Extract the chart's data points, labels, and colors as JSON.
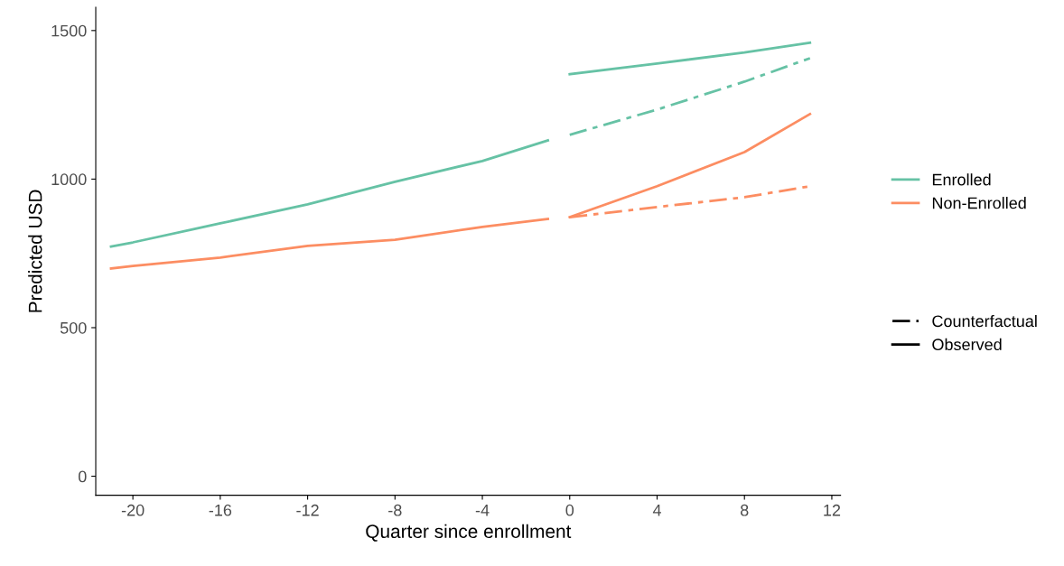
{
  "chart_data": {
    "type": "line",
    "xlabel": "Quarter since enrollment",
    "ylabel": "Predicted USD",
    "xlim": [
      -21.7,
      12.4
    ],
    "xticks": [
      -20,
      -16,
      -12,
      -8,
      -4,
      0,
      4,
      8,
      12
    ],
    "ylim": [
      -64,
      1578
    ],
    "yticks": [
      0,
      500,
      1000,
      1500
    ],
    "grid": false,
    "legend": "right",
    "marker": "none",
    "series": [
      {
        "name": "Enrolled",
        "color": "#66c2a5",
        "line_style": "solid",
        "x": [
          -21,
          -20,
          -16,
          -12,
          -8,
          -4,
          -1
        ],
        "values": [
          773,
          787,
          851,
          915,
          991,
          1061,
          1130
        ]
      },
      {
        "color": "#66c2a5",
        "line_style": "solid",
        "x": [
          0,
          4,
          8,
          11
        ],
        "values": [
          1353,
          1389,
          1426,
          1459
        ]
      },
      {
        "color": "#66c2a5",
        "line_style": "dashed",
        "x": [
          0,
          4,
          8,
          11
        ],
        "values": [
          1149,
          1234,
          1328,
          1407
        ]
      },
      {
        "name": "Non-Enrolled",
        "color": "#fc8d62",
        "line_style": "solid",
        "x": [
          -21,
          -20,
          -16,
          -12,
          -8,
          -4,
          -1
        ],
        "values": [
          699,
          708,
          736,
          775,
          796,
          839,
          866
        ]
      },
      {
        "color": "#fc8d62",
        "line_style": "solid",
        "x": [
          0,
          4,
          8,
          11
        ],
        "values": [
          872,
          976,
          1091,
          1219
        ]
      },
      {
        "color": "#fc8d62",
        "line_style": "dashed",
        "x": [
          0,
          4,
          8,
          11
        ],
        "values": [
          872,
          906,
          939,
          976
        ]
      },
      {
        "name": "Counterfactual",
        "color": "#000000",
        "line_style": "dashed"
      },
      {
        "name": "Observed",
        "color": "#000000",
        "line_style": "solid"
      }
    ]
  }
}
